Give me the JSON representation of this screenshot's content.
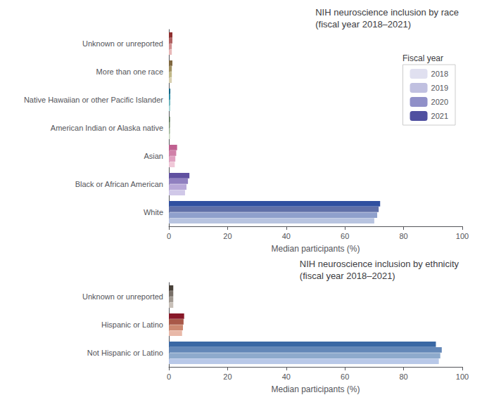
{
  "chart_data": [
    {
      "type": "bar",
      "orientation": "horizontal",
      "title": "NIH neuroscience inclusion by race\n(fiscal year 2018–2021)",
      "xlabel": "Median participants (%)",
      "categories": [
        "White",
        "Black or African American",
        "Asian",
        "American Indian or Alaska native",
        "Native Hawaiian or other Pacific Islander",
        "More than one race",
        "Unknown or unreported"
      ],
      "series": [
        {
          "name": "2018",
          "color": "#e0e0f0",
          "colors": [
            "#b8c4e0",
            "#d0c8e8",
            "#f0c8d8",
            "#c8d8c0",
            "#a8d8d8",
            "#d8d0b0",
            "#e8b8b8"
          ],
          "values": [
            70.0,
            5.5,
            2.0,
            0.4,
            0.5,
            1.0,
            1.0
          ]
        },
        {
          "name": "2019",
          "color": "#c0c0e0",
          "colors": [
            "#8fa0cc",
            "#b8a8d8",
            "#e0a0c0",
            "#a0b898",
            "#70b8c0",
            "#c0b888",
            "#d09090"
          ],
          "values": [
            71.0,
            6.0,
            2.2,
            0.4,
            0.5,
            1.0,
            1.0
          ]
        },
        {
          "name": "2020",
          "color": "#9090c8",
          "colors": [
            "#6070a8",
            "#9080c0",
            "#d080a8",
            "#809878",
            "#3090a8",
            "#a09060",
            "#b06060"
          ],
          "values": [
            71.5,
            6.5,
            2.5,
            0.4,
            0.5,
            1.0,
            1.2
          ]
        },
        {
          "name": "2021",
          "color": "#5050a0",
          "colors": [
            "#3050a0",
            "#6050a0",
            "#c06090",
            "#507050",
            "#106888",
            "#806840",
            "#903030"
          ],
          "values": [
            72.0,
            7.0,
            2.8,
            0.4,
            0.5,
            1.2,
            1.2
          ]
        }
      ],
      "xlim": [
        0,
        100
      ],
      "xticks": [
        0,
        20,
        40,
        60,
        80,
        100
      ],
      "grid": false,
      "legend": "upper right",
      "legend_title": "Fiscal year"
    },
    {
      "type": "bar",
      "orientation": "horizontal",
      "title": "NIH neuroscience inclusion by ethnicity\n(fiscal year 2018–2021)",
      "xlabel": "Median participants (%)",
      "categories": [
        "Not Hispanic or Latino",
        "Hispanic or Latino",
        "Unknown or unreported"
      ],
      "series": [
        {
          "name": "2018",
          "colors": [
            "#b8c8e8",
            "#e8b8a8",
            "#c8c0b8"
          ],
          "values": [
            92.0,
            4.5,
            1.5
          ]
        },
        {
          "name": "2019",
          "colors": [
            "#8eaacc",
            "#cc8870",
            "#a09890"
          ],
          "values": [
            92.5,
            4.8,
            1.5
          ]
        },
        {
          "name": "2020",
          "colors": [
            "#6488b8",
            "#a85848",
            "#787068"
          ],
          "values": [
            93.0,
            5.0,
            1.5
          ]
        },
        {
          "name": "2021",
          "colors": [
            "#3a68a4",
            "#881828",
            "#484038"
          ],
          "values": [
            91.0,
            5.2,
            1.5
          ]
        }
      ],
      "xlim": [
        0,
        100
      ],
      "xticks": [
        0,
        20,
        40,
        60,
        80,
        100
      ],
      "grid": false,
      "legend": false
    }
  ]
}
